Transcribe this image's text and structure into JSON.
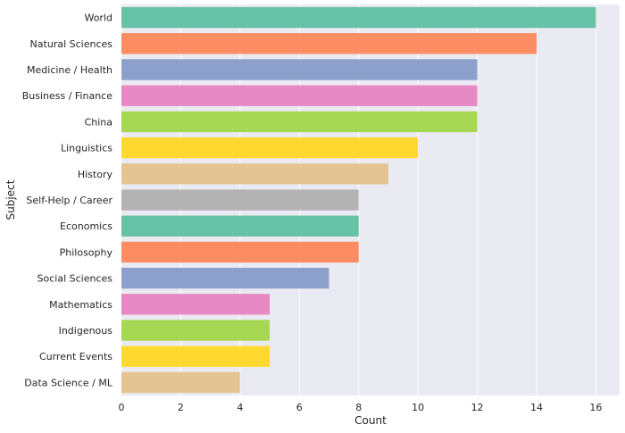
{
  "chart_data": {
    "type": "bar",
    "orientation": "horizontal",
    "categories": [
      "World",
      "Natural Sciences",
      "Medicine / Health",
      "Business / Finance",
      "China",
      "Linguistics",
      "History",
      "Self-Help / Career",
      "Economics",
      "Philosophy",
      "Social Sciences",
      "Mathematics",
      "Indigenous",
      "Current Events",
      "Data Science / ML"
    ],
    "values": [
      16,
      14,
      12,
      12,
      12,
      10,
      9,
      8,
      8,
      8,
      7,
      5,
      5,
      5,
      4
    ],
    "colors": [
      "#66c2a5",
      "#fc8d62",
      "#8da0cb",
      "#e78ac3",
      "#a6d854",
      "#ffd92f",
      "#e5c494",
      "#b3b3b3",
      "#66c2a5",
      "#fc8d62",
      "#8da0cb",
      "#e78ac3",
      "#a6d854",
      "#ffd92f",
      "#e5c494"
    ],
    "xlabel": "Count",
    "ylabel": "Subject",
    "xticks": [
      0,
      2,
      4,
      6,
      8,
      10,
      12,
      14,
      16
    ],
    "xlim": [
      0,
      16.8
    ],
    "grid": true,
    "background": "#eaeaf2",
    "grid_color": "#ffffff"
  }
}
